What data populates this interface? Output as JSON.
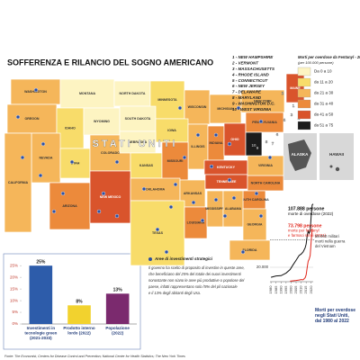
{
  "title": "SOFFERENZA E RILANCIO DEL SOGNO AMERICANO",
  "state_list": [
    "1 - NEW HAMPSHIRE",
    "2 - VERMONT",
    "3 - MASSACHUSETTS",
    "4 - RHODE ISLAND",
    "5 - CONNECTICUT",
    "6 - NEW JERSEY",
    "7 - DELAWARE",
    "8 - MARYLAND",
    "9 - WASHINGTON D.C.",
    "10 - WEST VIRGINIA"
  ],
  "map": {
    "country_label": "STATI UNITI",
    "legend_title": "Morti per overdose da Fentanyl - 2022",
    "legend_subtitle": "(per 100.000 persone)",
    "classes": [
      {
        "label": "Da 0 a 10",
        "color": "#fdf4c2"
      },
      {
        "label": "da 11 a 20",
        "color": "#f8dc6a"
      },
      {
        "label": "da 21 a 30",
        "color": "#f5b65a"
      },
      {
        "label": "da 31 a 40",
        "color": "#ec8a3b"
      },
      {
        "label": "da 41 a 50",
        "color": "#d9542c"
      },
      {
        "label": "da 51 a 75",
        "color": "#1c1c1c"
      }
    ],
    "states": [
      {
        "label": "WASHINGTON",
        "class": 2
      },
      {
        "label": "MONTANA",
        "class": 0
      },
      {
        "label": "NORTH DAKOTA",
        "class": 0
      },
      {
        "label": "MINNESOTA",
        "class": 1
      },
      {
        "label": "WISCONSIN",
        "class": 2
      },
      {
        "label": "MICHIGAN",
        "class": 2
      },
      {
        "label": "NEW YORK",
        "class": 2
      },
      {
        "label": "MAINE",
        "class": 4
      },
      {
        "label": "OREGON",
        "class": 2
      },
      {
        "label": "IDAHO",
        "class": 1
      },
      {
        "label": "WYOMING",
        "class": 0
      },
      {
        "label": "SOUTH DAKOTA",
        "class": 0
      },
      {
        "label": "IOWA",
        "class": 1
      },
      {
        "label": "NEVADA",
        "class": 2
      },
      {
        "label": "UTAH",
        "class": 1
      },
      {
        "label": "COLORADO",
        "class": 2
      },
      {
        "label": "NEBRASKA",
        "class": 0
      },
      {
        "label": "ILLINOIS",
        "class": 2
      },
      {
        "label": "INDIANA",
        "class": 3
      },
      {
        "label": "OHIO",
        "class": 4
      },
      {
        "label": "PENNSYLVANIA",
        "class": 3
      },
      {
        "label": "KANSAS",
        "class": 1
      },
      {
        "label": "MISSOURI",
        "class": 3
      },
      {
        "label": "KENTUCKY",
        "class": 4
      },
      {
        "label": "CALIFORNIA",
        "class": 2
      },
      {
        "label": "ARIZONA",
        "class": 3
      },
      {
        "label": "NEW MEXICO",
        "class": 4
      },
      {
        "label": "OKLAHOMA",
        "class": 2
      },
      {
        "label": "ARKANSAS",
        "class": 2
      },
      {
        "label": "TENNESSEE",
        "class": 4
      },
      {
        "label": "NORTH CAROLINA",
        "class": 3
      },
      {
        "label": "SOUTH CAROLINA",
        "class": 3
      },
      {
        "label": "TEXAS",
        "class": 1
      },
      {
        "label": "LOUISIANA",
        "class": 3
      },
      {
        "label": "MISSISSIPPI",
        "class": 2
      },
      {
        "label": "ALABAMA",
        "class": 2
      },
      {
        "label": "GEORGIA",
        "class": 2
      },
      {
        "label": "FLORIDA",
        "class": 2
      },
      {
        "label": "VIRGINIA",
        "class": 2
      },
      {
        "label": "WEST VIRGINIA",
        "class": 5
      }
    ],
    "numbers": [
      "1",
      "2",
      "3",
      "4",
      "5",
      "6",
      "7",
      "8",
      "9",
      "10"
    ],
    "insets": [
      "ALASKA",
      "HAWAII"
    ],
    "dots_label": "Aree di investimenti strategici",
    "dot_color": "#2d4fa0"
  },
  "note": [
    "Il governo ha scelto di proposito di investire in queste aree,",
    "che beneficiano del 25% del totale dei nuovi investimenti",
    "nonostante non siano le aree più produttive o popolose del",
    "paese, infatti rappresentano solo l'8% del pil nazionale",
    "e il 13% degli abitanti degli Usa."
  ],
  "chart_data": [
    {
      "type": "bar",
      "categories": [
        "Investimenti in tecnologie green (2021-2033)",
        "Prodotto interno lordo (2022)",
        "Popolazione (2022)"
      ],
      "values": [
        25,
        8,
        13
      ],
      "value_labels": [
        "25%",
        "8%",
        "13%"
      ],
      "colors": [
        "#2d5caa",
        "#f2d22e",
        "#7b2a6e"
      ],
      "ylim": [
        0,
        27
      ],
      "yticks": [
        {
          "value": 0,
          "label": "0%"
        },
        {
          "value": 5,
          "label": "5%"
        },
        {
          "value": 10,
          "label": "10%"
        },
        {
          "value": 15,
          "label": "15%"
        },
        {
          "value": 20,
          "label": "20%"
        },
        {
          "value": 25,
          "label": "25%"
        }
      ]
    },
    {
      "type": "line",
      "title": "Morti per overdose negli Stati Uniti, dal 1980 al 2022",
      "x": [
        1980,
        1985,
        1990,
        1995,
        1999,
        2002,
        2005,
        2008,
        2010,
        2012,
        2014,
        2015,
        2016,
        2017,
        2018,
        2019,
        2020,
        2021,
        2022
      ],
      "series": [
        {
          "color": "#111111",
          "values": [
            6100,
            8000,
            8400,
            12000,
            16849,
            23518,
            29813,
            36450,
            38329,
            41502,
            47055,
            52404,
            63632,
            70237,
            67367,
            70630,
            91799,
            106699,
            107888
          ]
        },
        {
          "color": "#e0261c",
          "values": [
            null,
            null,
            null,
            null,
            730,
            1295,
            1742,
            2306,
            3007,
            2628,
            5544,
            9580,
            19413,
            28466,
            31335,
            36359,
            56516,
            73798,
            null
          ]
        }
      ],
      "xlim": [
        1979,
        2022
      ],
      "xticks": [
        1980,
        1985,
        1990,
        1995,
        2000,
        2005,
        2010,
        2015,
        2020
      ],
      "ylim": [
        0,
        110000
      ],
      "yticks": [
        {
          "value": 20000,
          "label": "20.000"
        }
      ],
      "reference_line": 58000,
      "annotations": {
        "total": [
          "107.888 persone",
          "morte di overdose (2022)"
        ],
        "fentanyl": [
          "73.798 persone",
          "morte per fentanyl",
          "e farmaci simili (2021)"
        ],
        "vietnam": [
          "58.000 militari",
          "morti nella guerra",
          "del Vietnam"
        ]
      }
    }
  ],
  "source": "Fonte: The Economist, Centers for Disease Control and Prevention; National Center for Health Statistics; The New York Times"
}
